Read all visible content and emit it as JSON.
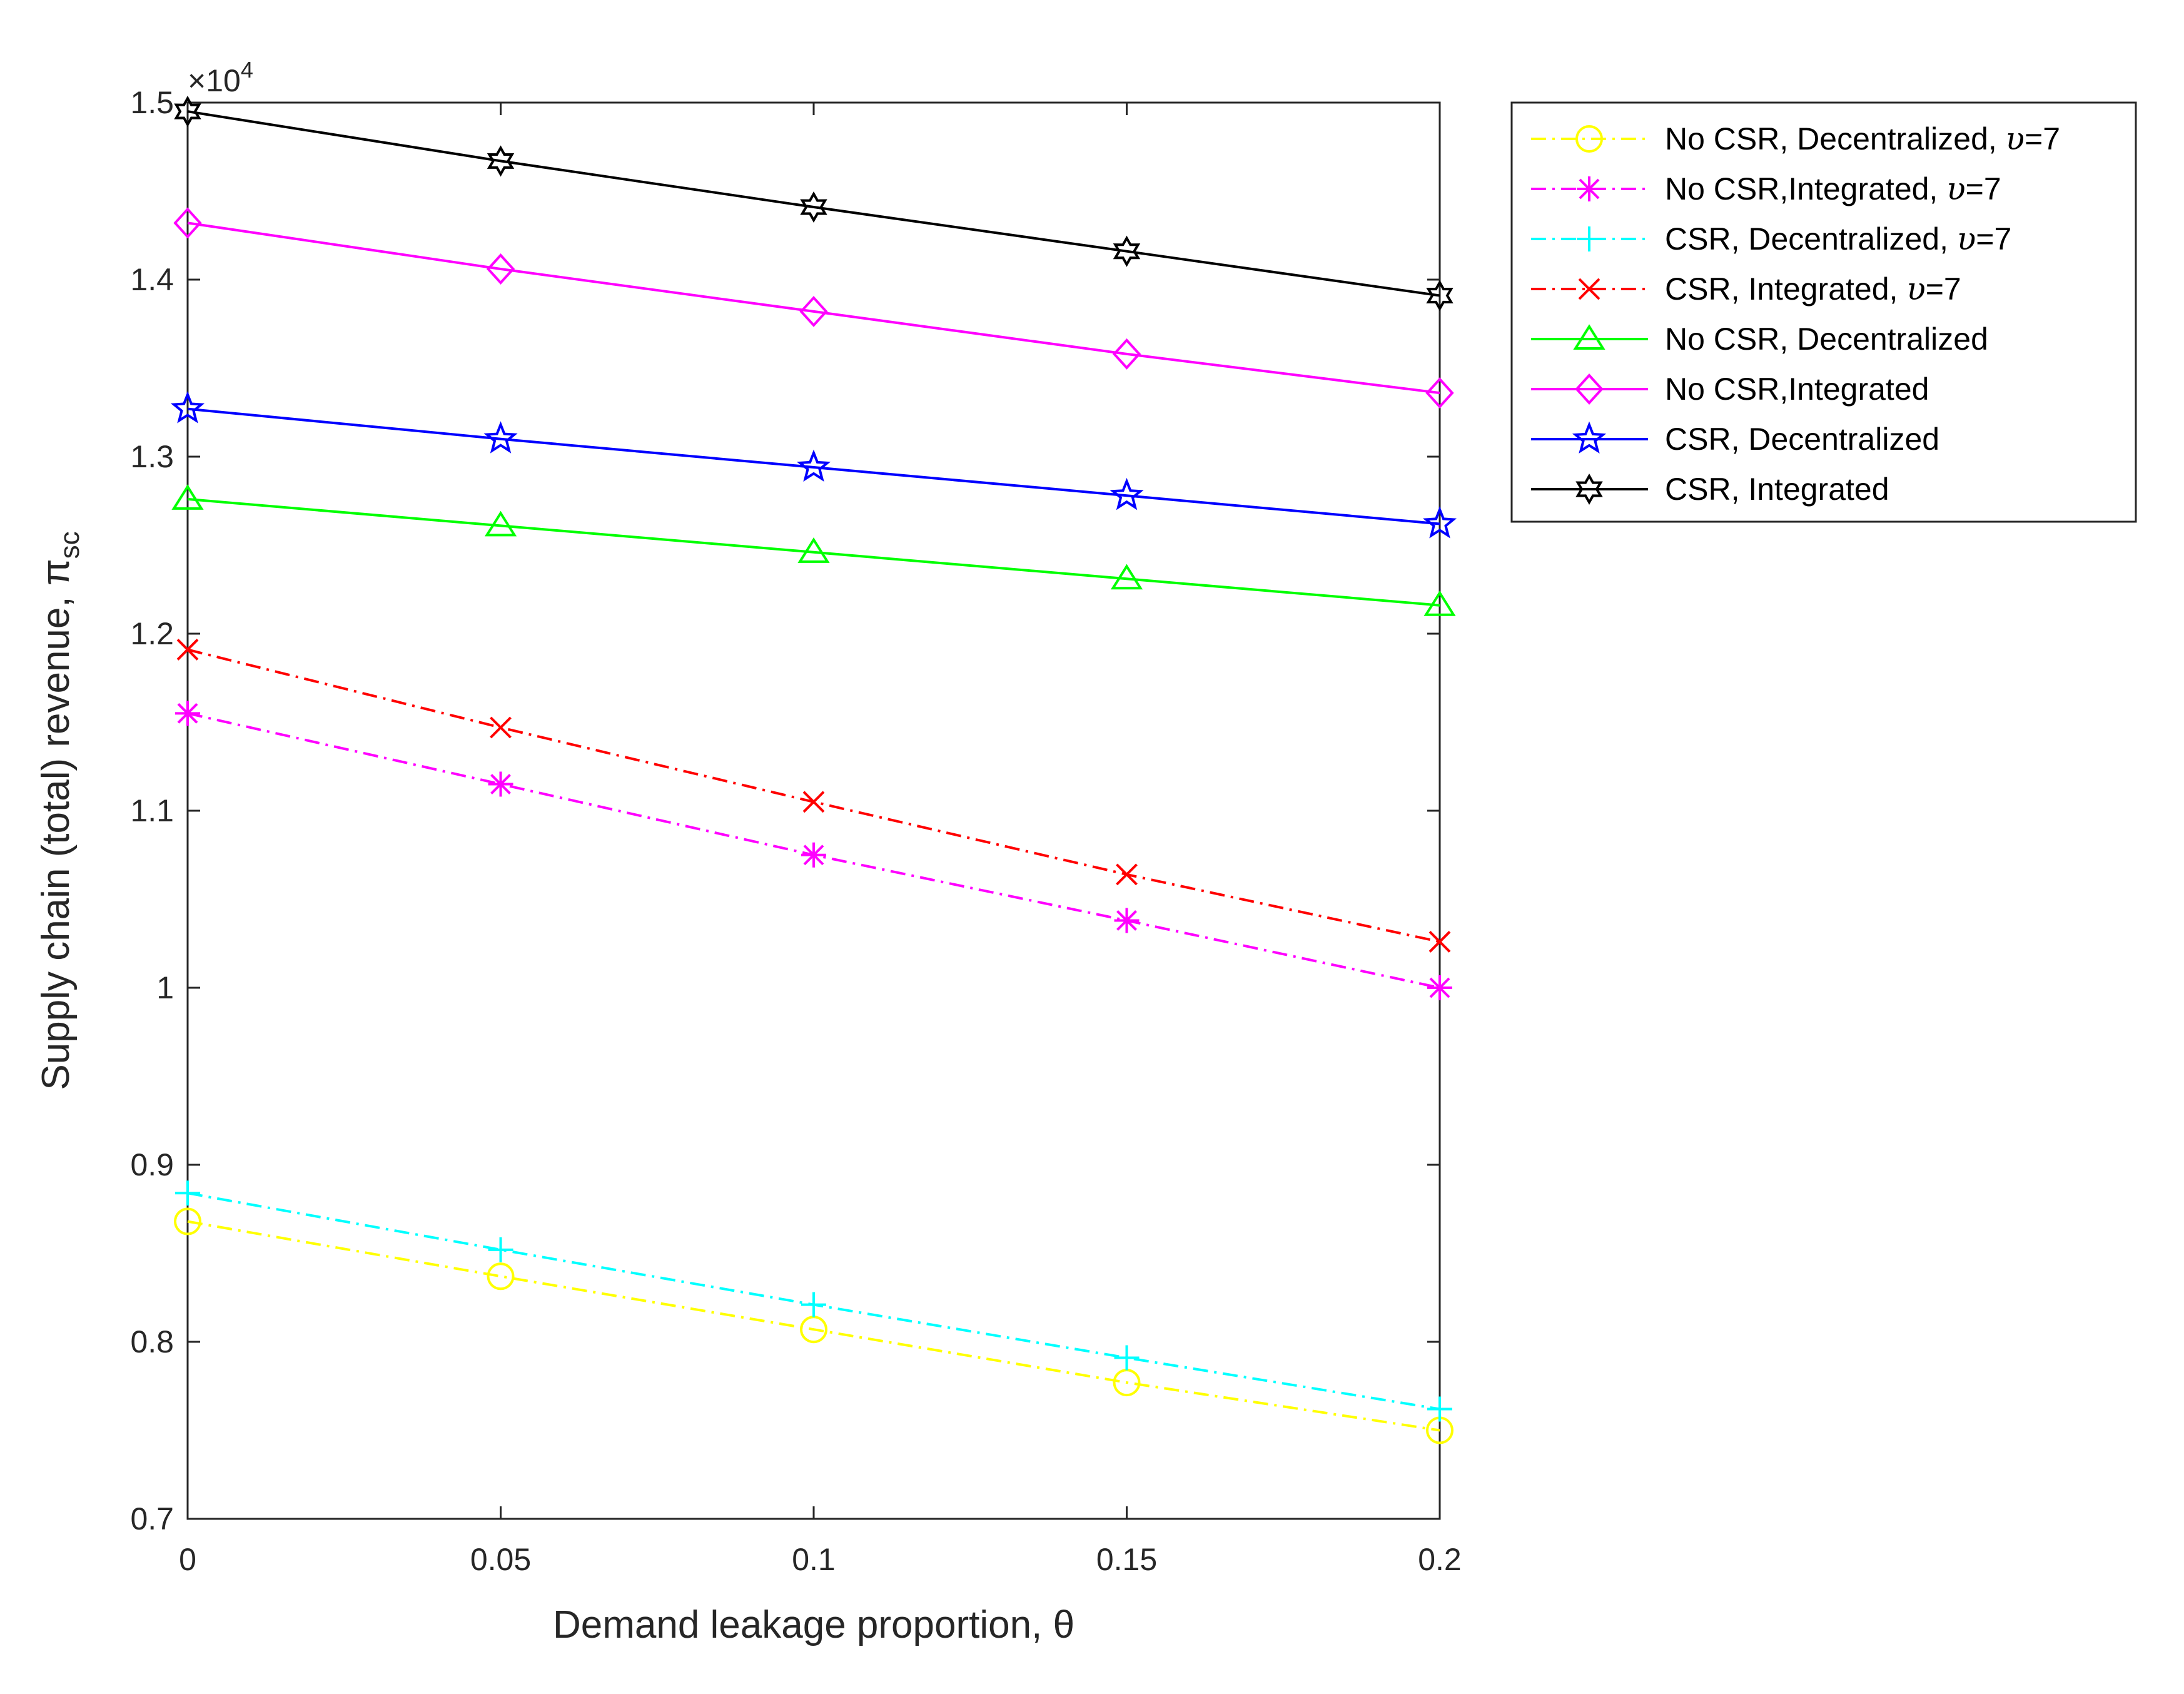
{
  "chart_data": {
    "type": "line",
    "title": "",
    "xlabel": "Demand leakage proportion, θ",
    "ylabel": "Supply chain (total) revenue, π",
    "ylabel_subscript": "sc",
    "y_exponent_prefix": "×10",
    "y_exponent_power": "4",
    "x": [
      0,
      0.05,
      0.1,
      0.15,
      0.2
    ],
    "xlim": [
      0,
      0.2
    ],
    "ylim": [
      0.7,
      1.5
    ],
    "x_ticks": [
      "0",
      "0.05",
      "0.1",
      "0.15",
      "0.2"
    ],
    "x_tick_values": [
      0,
      0.05,
      0.1,
      0.15,
      0.2
    ],
    "y_ticks": [
      "0.7",
      "0.8",
      "0.9",
      "1",
      "1.1",
      "1.2",
      "1.3",
      "1.4",
      "1.5"
    ],
    "y_tick_values": [
      0.7,
      0.8,
      0.9,
      1.0,
      1.1,
      1.2,
      1.3,
      1.4,
      1.5
    ],
    "grid": false,
    "legend_position": "outside-top-right",
    "series": [
      {
        "name": "No CSR, Decentralized, ",
        "suffix_symbol": "υ",
        "suffix_value": "=7",
        "values": [
          0.868,
          0.837,
          0.807,
          0.777,
          0.75
        ],
        "color": "#ffff00",
        "style": "dashdot",
        "marker": "circle"
      },
      {
        "name": "No CSR,Integrated, ",
        "suffix_symbol": "υ",
        "suffix_value": "=7",
        "values": [
          1.155,
          1.115,
          1.075,
          1.038,
          1.0
        ],
        "color": "#ff00ff",
        "style": "dashdot",
        "marker": "asterisk"
      },
      {
        "name": "CSR, Decentralized, ",
        "suffix_symbol": "υ",
        "suffix_value": "=7",
        "values": [
          0.884,
          0.852,
          0.821,
          0.791,
          0.762
        ],
        "color": "#00ffff",
        "style": "dashdot",
        "marker": "plus"
      },
      {
        "name": "CSR, Integrated, ",
        "suffix_symbol": "υ",
        "suffix_value": "=7",
        "values": [
          1.191,
          1.147,
          1.105,
          1.064,
          1.026
        ],
        "color": "#ff0000",
        "style": "dashdot",
        "marker": "x"
      },
      {
        "name": "No CSR, Decentralized",
        "values": [
          1.276,
          1.261,
          1.246,
          1.231,
          1.216
        ],
        "color": "#00ff00",
        "style": "solid",
        "marker": "triangle"
      },
      {
        "name": "No CSR,Integrated",
        "values": [
          1.432,
          1.406,
          1.382,
          1.358,
          1.336
        ],
        "color": "#ff00ff",
        "style": "solid",
        "marker": "diamond"
      },
      {
        "name": "CSR, Decentralized",
        "values": [
          1.327,
          1.31,
          1.294,
          1.278,
          1.262
        ],
        "color": "#0000ff",
        "style": "solid",
        "marker": "pentagram"
      },
      {
        "name": "CSR, Integrated",
        "values": [
          1.495,
          1.467,
          1.441,
          1.416,
          1.391
        ],
        "color": "#000000",
        "style": "solid",
        "marker": "hexagram"
      }
    ]
  }
}
